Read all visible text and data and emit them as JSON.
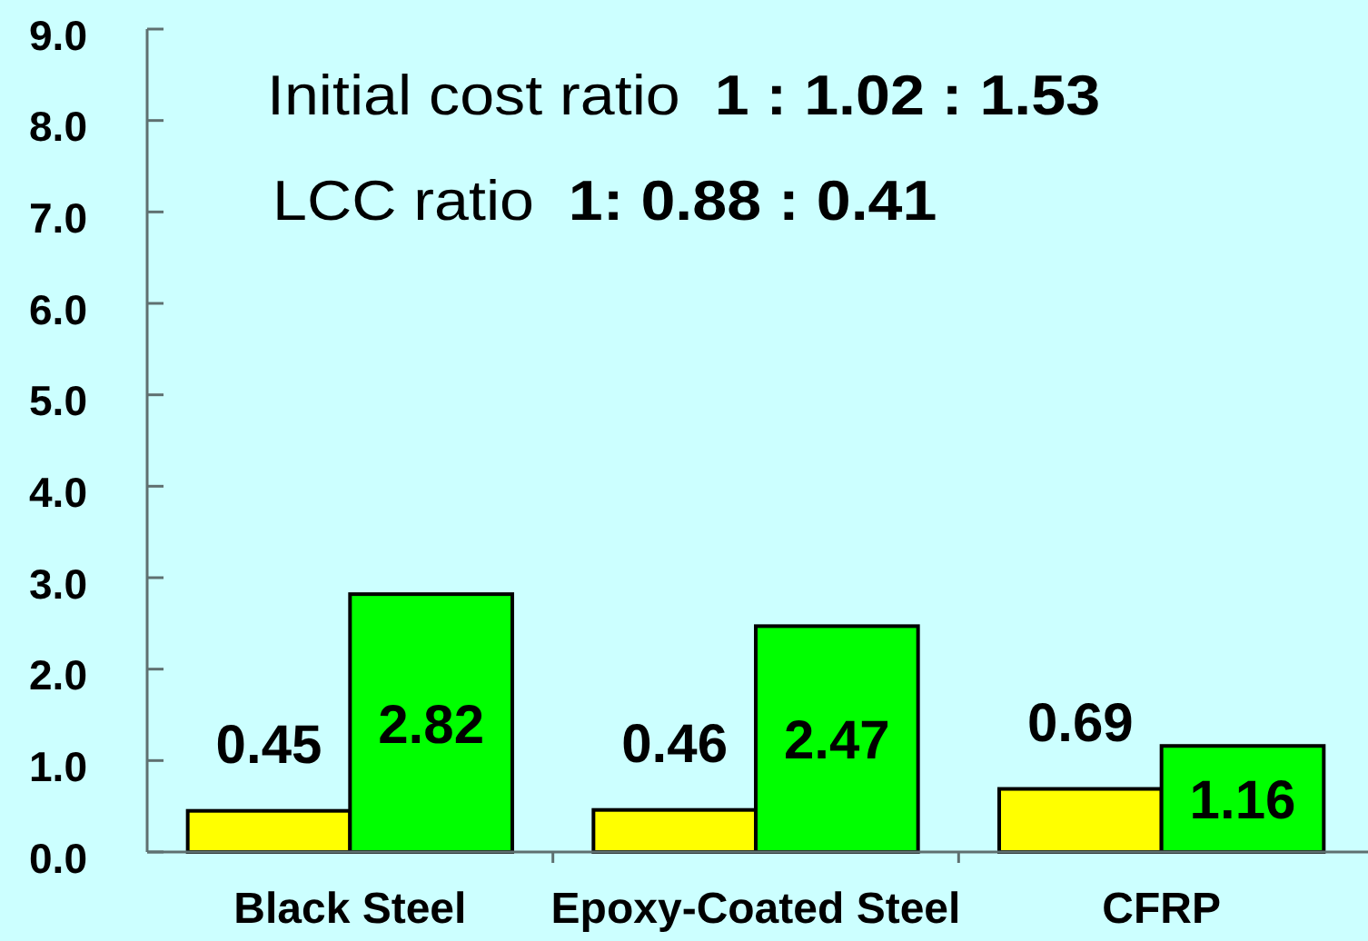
{
  "chart_data": {
    "type": "bar",
    "categories": [
      "Black Steel",
      "Epoxy-Coated Steel",
      "CFRP"
    ],
    "series": [
      {
        "color": "#ffff00",
        "values": [
          0.45,
          0.46,
          0.69
        ]
      },
      {
        "color": "#00ff00",
        "values": [
          2.82,
          2.47,
          1.16
        ]
      }
    ],
    "ylim": [
      0,
      9
    ],
    "yticks": [
      {
        "value": 0,
        "label": "0.0"
      },
      {
        "value": 1,
        "label": "1.0"
      },
      {
        "value": 2,
        "label": "2.0"
      },
      {
        "value": 3,
        "label": "3.0"
      },
      {
        "value": 4,
        "label": "4.0"
      },
      {
        "value": 5,
        "label": "5.0"
      },
      {
        "value": 6,
        "label": "6.0"
      },
      {
        "value": 7,
        "label": "7.0"
      },
      {
        "value": 8,
        "label": "8.0"
      },
      {
        "value": 9,
        "label": "9.0"
      }
    ],
    "data_labels": true,
    "annotations": [
      "Initial cost ratio  1 : 1.02 : 1.53",
      "LCC ratio  1: 0.88 : 0.41"
    ]
  }
}
